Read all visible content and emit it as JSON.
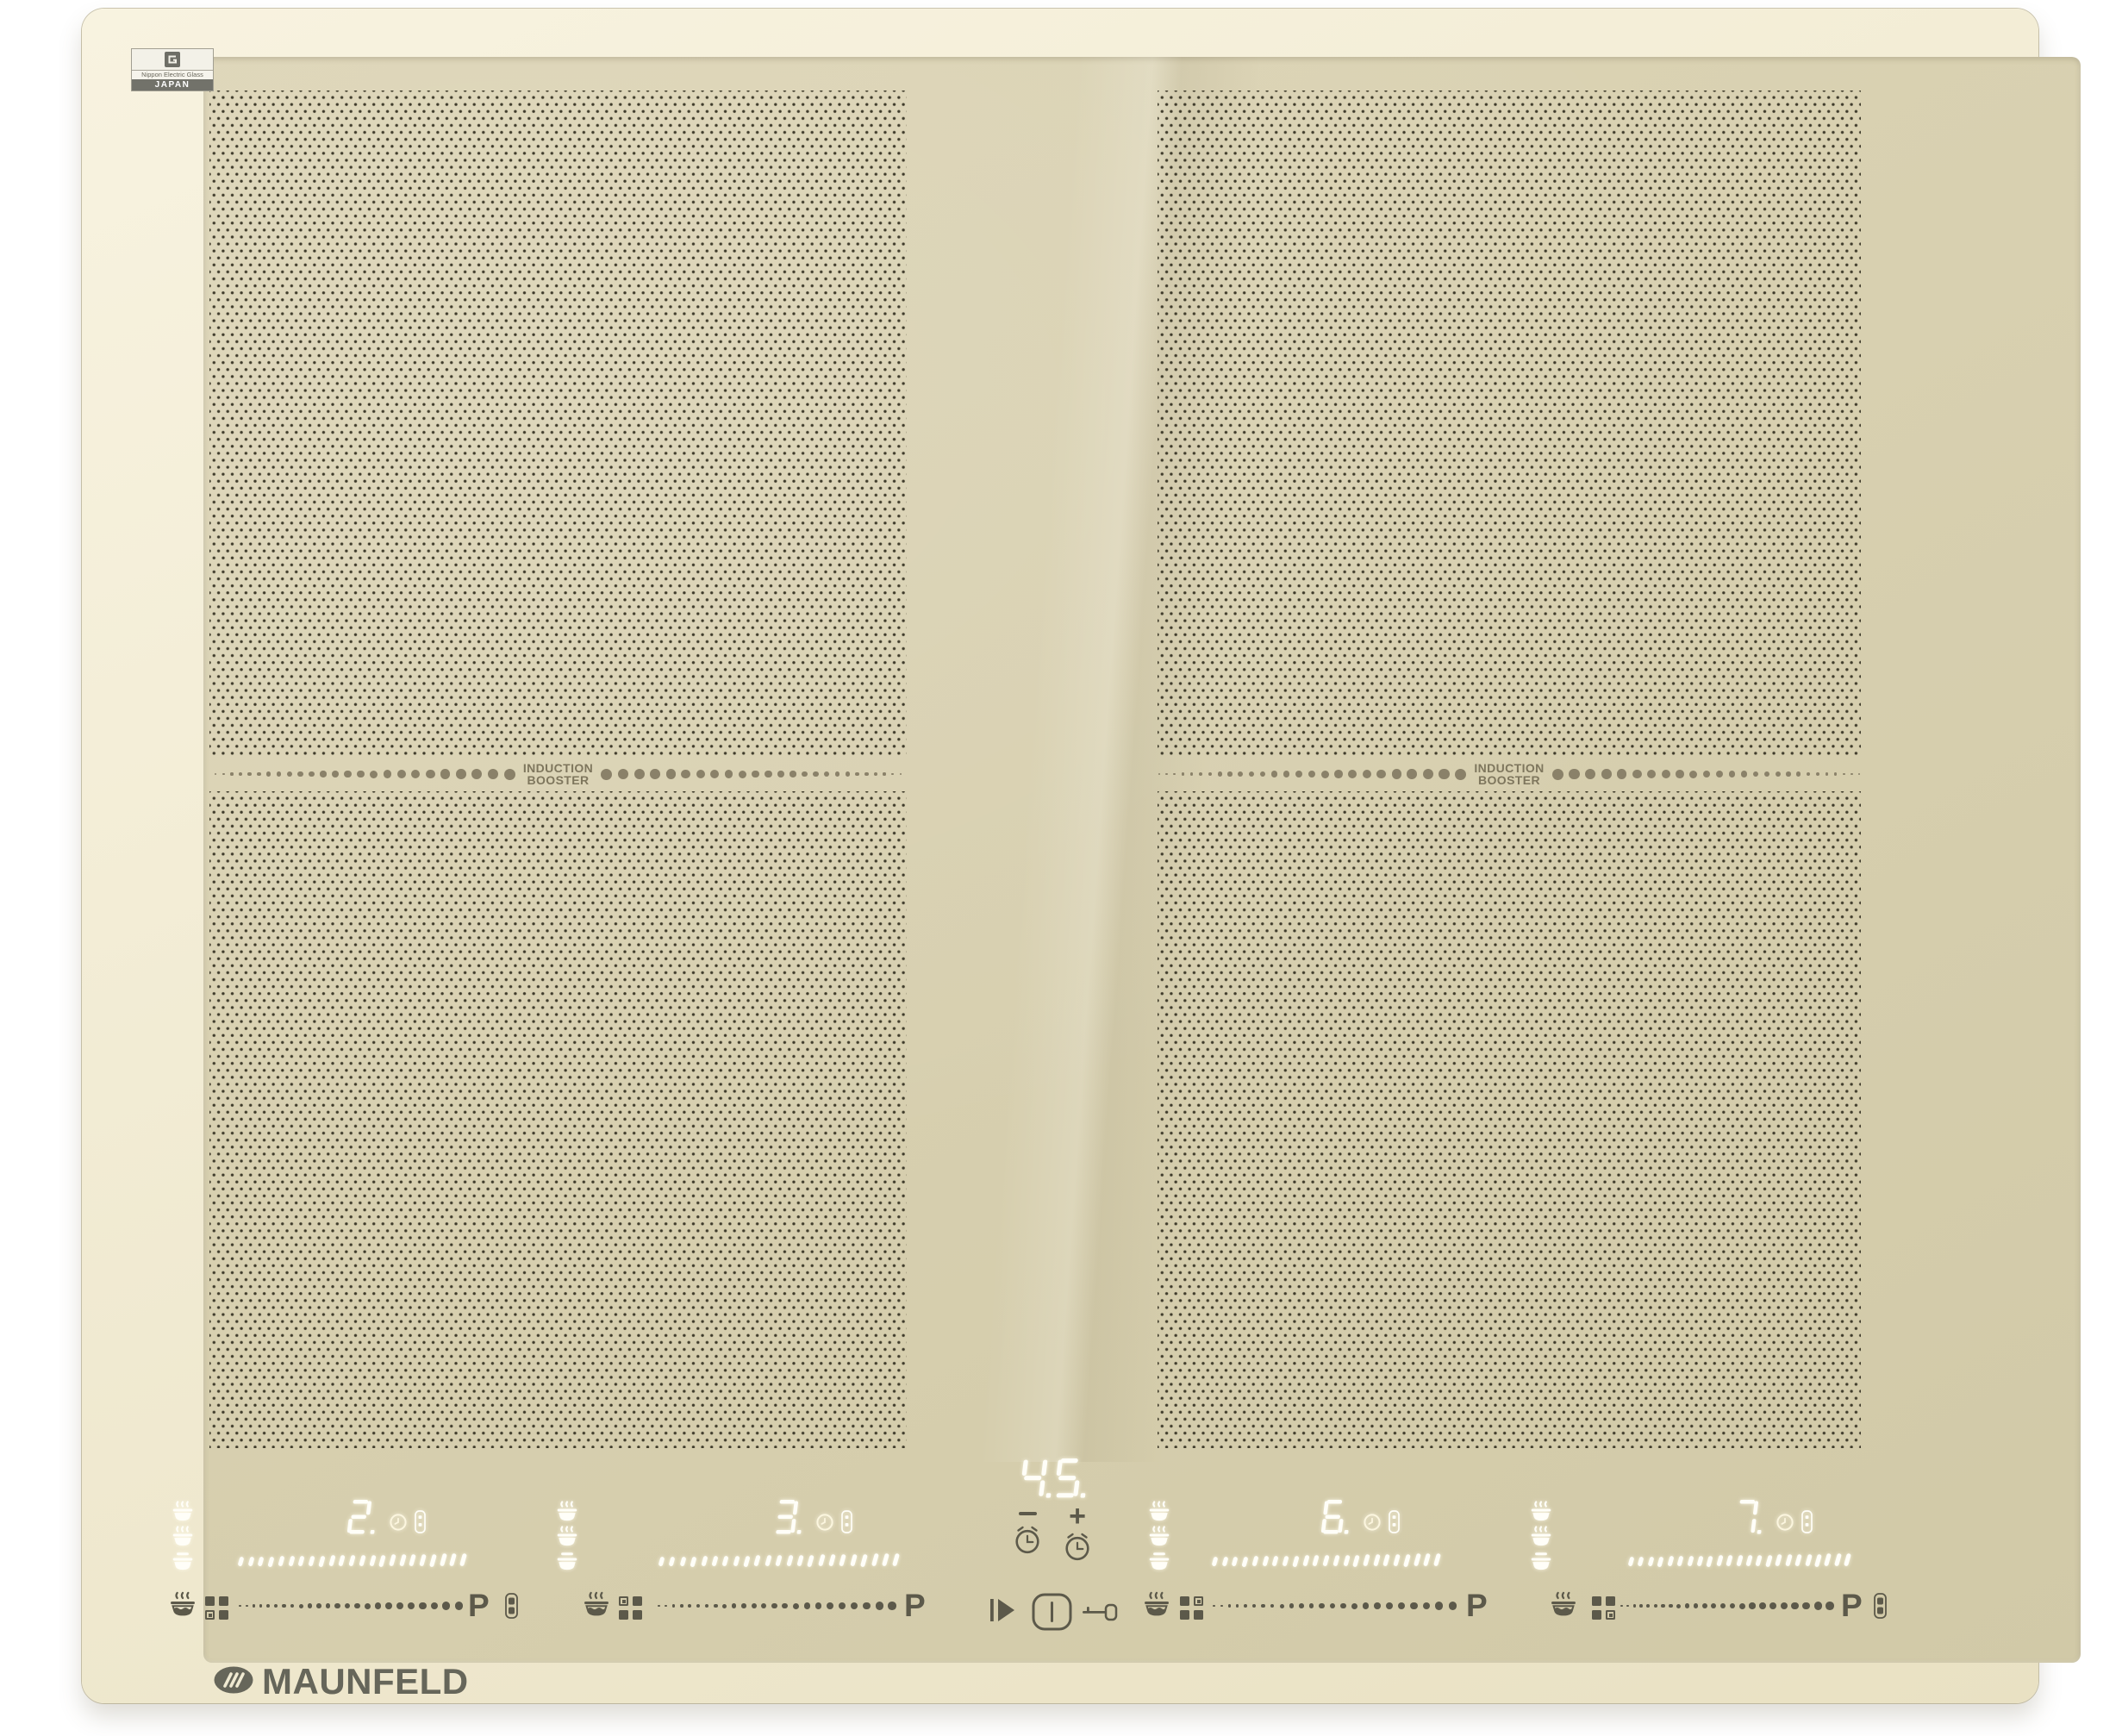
{
  "badge": {
    "maker": "Nippon Electric Glass",
    "country": "JAPAN"
  },
  "booster": {
    "line1": "INDUCTION",
    "line2": "BOOSTER"
  },
  "brand": "MAUNFELD",
  "center": {
    "timer_value": "45",
    "minus": "−",
    "plus": "+"
  },
  "power_label": "P",
  "zones": [
    {
      "id": "rear-left",
      "level": "2",
      "led_segments": 23,
      "touch_dots": 24,
      "bridge_corner": "bottom-left",
      "has_mode_key": true
    },
    {
      "id": "front-left",
      "level": "3",
      "led_segments": 23,
      "touch_dots": 24,
      "bridge_corner": "top-left",
      "has_mode_key": false
    },
    {
      "id": "rear-right",
      "level": "6",
      "led_segments": 23,
      "touch_dots": 24,
      "bridge_corner": "top-right",
      "has_mode_key": false
    },
    {
      "id": "front-right",
      "level": "7",
      "led_segments": 23,
      "touch_dots": 24,
      "bridge_corner": "bottom-right",
      "has_mode_key": true
    }
  ],
  "icons": {
    "pan": "pot-with-steam",
    "pan_lid": "pot-with-lid",
    "bridge": "four-square-zone-grid",
    "timer_adjust": "alarm-clock",
    "timer_indicator": "clock",
    "mode_key": "two-segment-pill",
    "pause": "play-pause",
    "power": "power-switch",
    "lock": "key"
  },
  "colors": {
    "glass": "#d8d0b0",
    "bevel": "#f3edd6",
    "pattern_dot": "#3e3a2a",
    "booster_print": "#8a8169",
    "control_print": "#5c594a",
    "led": "#ffffff",
    "brand_print": "#66665a",
    "badge_band": "#72726a"
  }
}
